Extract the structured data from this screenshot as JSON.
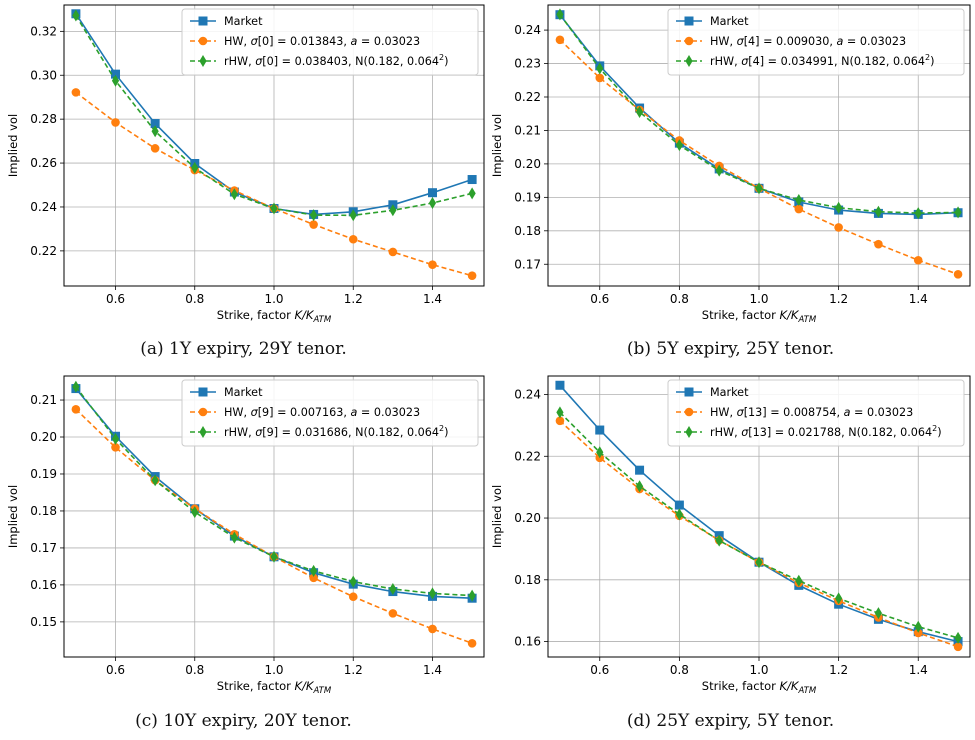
{
  "colors": {
    "market": "#1f77b4",
    "hw": "#ff7f0e",
    "rhw": "#2ca02c",
    "grid": "#b0b0b0"
  },
  "chart_data": [
    {
      "type": "line",
      "caption": "(a) 1Y expiry, 29Y tenor.",
      "xlabel": "Strike, factor K/K_ATM",
      "ylabel": "Implied vol",
      "xlim": [
        0.47,
        1.53
      ],
      "ylim": [
        0.204,
        0.332
      ],
      "xticks": [
        0.6,
        0.8,
        1.0,
        1.2,
        1.4
      ],
      "yticks": [
        0.22,
        0.24,
        0.26,
        0.28,
        0.3,
        0.32
      ],
      "grid": true,
      "legend": "top-right",
      "x": [
        0.5,
        0.6,
        0.7,
        0.8,
        0.9,
        1.0,
        1.1,
        1.2,
        1.3,
        1.4,
        1.5
      ],
      "series": [
        {
          "key": "market",
          "legend": {
            "text": "Market"
          },
          "values": [
            0.328,
            0.3005,
            0.278,
            0.2598,
            0.2468,
            0.2393,
            0.2366,
            0.2378,
            0.241,
            0.2465,
            0.2525
          ]
        },
        {
          "key": "hw",
          "legend": {
            "pre": "HW, ",
            "sym": "σ",
            "mid": "[0] = 0.013843, ",
            "sym2": "a",
            "post": " = 0.03023"
          },
          "values": [
            0.2922,
            0.2785,
            0.2667,
            0.2568,
            0.2475,
            0.2393,
            0.232,
            0.2253,
            0.2195,
            0.2137,
            0.2087
          ]
        },
        {
          "key": "rhw",
          "legend": {
            "pre": "rHW, ",
            "sym": "σ",
            "mid": "[0] = 0.038403, N(0.182, 0.064",
            "sup": "2",
            "post": ")"
          },
          "values": [
            0.3272,
            0.2975,
            0.2745,
            0.2578,
            0.2458,
            0.2393,
            0.2363,
            0.2362,
            0.2385,
            0.2418,
            0.2462
          ]
        }
      ]
    },
    {
      "type": "line",
      "caption": "(b) 5Y expiry, 25Y tenor.",
      "xlabel": "Strike, factor K/K_ATM",
      "ylabel": "Implied vol",
      "xlim": [
        0.47,
        1.53
      ],
      "ylim": [
        0.1635,
        0.2475
      ],
      "xticks": [
        0.6,
        0.8,
        1.0,
        1.2,
        1.4
      ],
      "yticks": [
        0.17,
        0.18,
        0.19,
        0.2,
        0.21,
        0.22,
        0.23,
        0.24
      ],
      "grid": true,
      "legend": "top-right",
      "x": [
        0.5,
        0.6,
        0.7,
        0.8,
        0.9,
        1.0,
        1.1,
        1.2,
        1.3,
        1.4,
        1.5
      ],
      "series": [
        {
          "key": "market",
          "legend": {
            "text": "Market"
          },
          "values": [
            0.2446,
            0.2293,
            0.2167,
            0.2062,
            0.1985,
            0.1927,
            0.1886,
            0.1862,
            0.1852,
            0.1849,
            0.1854
          ]
        },
        {
          "key": "hw",
          "legend": {
            "pre": "HW, ",
            "sym": "σ",
            "mid": "[4] = 0.009030, ",
            "sym2": "a",
            "post": " = 0.03023"
          },
          "values": [
            0.2371,
            0.2257,
            0.2161,
            0.207,
            0.1994,
            0.1927,
            0.1865,
            0.181,
            0.176,
            0.1712,
            0.167
          ]
        },
        {
          "key": "rhw",
          "legend": {
            "pre": "rHW, ",
            "sym": "σ",
            "mid": "[4] = 0.034991, N(0.182, 0.064",
            "sup": "2",
            "post": ")"
          },
          "values": [
            0.2447,
            0.2285,
            0.2155,
            0.2056,
            0.198,
            0.1927,
            0.1892,
            0.1869,
            0.1857,
            0.1853,
            0.1855
          ]
        }
      ]
    },
    {
      "type": "line",
      "caption": "(c) 10Y expiry, 20Y tenor.",
      "xlabel": "Strike, factor K/K_ATM",
      "ylabel": "Implied vol",
      "xlim": [
        0.47,
        1.53
      ],
      "ylim": [
        0.1405,
        0.2165
      ],
      "xticks": [
        0.6,
        0.8,
        1.0,
        1.2,
        1.4
      ],
      "yticks": [
        0.15,
        0.16,
        0.17,
        0.18,
        0.19,
        0.2,
        0.21
      ],
      "grid": true,
      "legend": "top-right",
      "x": [
        0.5,
        0.6,
        0.7,
        0.8,
        0.9,
        1.0,
        1.1,
        1.2,
        1.3,
        1.4,
        1.5
      ],
      "series": [
        {
          "key": "market",
          "legend": {
            "text": "Market"
          },
          "values": [
            0.2131,
            0.2002,
            0.1893,
            0.1806,
            0.1732,
            0.1676,
            0.1633,
            0.1602,
            0.1582,
            0.1569,
            0.1564
          ]
        },
        {
          "key": "hw",
          "legend": {
            "pre": "HW, ",
            "sym": "σ",
            "mid": "[9] = 0.007163, ",
            "sym2": "a",
            "post": " = 0.03023"
          },
          "values": [
            0.2075,
            0.1972,
            0.1883,
            0.1806,
            0.1737,
            0.1676,
            0.1619,
            0.1568,
            0.1523,
            0.1481,
            0.1442
          ]
        },
        {
          "key": "rhw",
          "legend": {
            "pre": "rHW, ",
            "sym": "σ",
            "mid": "[9] = 0.031686, N(0.182, 0.064",
            "sup": "2",
            "post": ")"
          },
          "values": [
            0.2136,
            0.1995,
            0.1883,
            0.1797,
            0.1728,
            0.1676,
            0.1638,
            0.1609,
            0.1589,
            0.1577,
            0.1571
          ]
        }
      ]
    },
    {
      "type": "line",
      "caption": "(d) 25Y expiry, 5Y tenor.",
      "xlabel": "Strike, factor K/K_ATM",
      "ylabel": "Implied vol",
      "xlim": [
        0.47,
        1.53
      ],
      "ylim": [
        0.155,
        0.246
      ],
      "xticks": [
        0.6,
        0.8,
        1.0,
        1.2,
        1.4
      ],
      "yticks": [
        0.16,
        0.18,
        0.2,
        0.22,
        0.24
      ],
      "grid": true,
      "legend": "top-right",
      "x": [
        0.5,
        0.6,
        0.7,
        0.8,
        0.9,
        1.0,
        1.1,
        1.2,
        1.3,
        1.4,
        1.5
      ],
      "series": [
        {
          "key": "market",
          "legend": {
            "text": "Market"
          },
          "values": [
            0.243,
            0.2285,
            0.2155,
            0.2042,
            0.1943,
            0.1857,
            0.1782,
            0.1721,
            0.1672,
            0.1632,
            0.16
          ]
        },
        {
          "key": "hw",
          "legend": {
            "pre": "HW, ",
            "sym": "σ",
            "mid": "[13] = 0.008754, ",
            "sym2": "a",
            "post": " = 0.03023"
          },
          "values": [
            0.2315,
            0.2195,
            0.2094,
            0.2007,
            0.1928,
            0.1857,
            0.179,
            0.1732,
            0.1678,
            0.1628,
            0.1583
          ]
        },
        {
          "key": "rhw",
          "legend": {
            "pre": "rHW, ",
            "sym": "σ",
            "mid": "[13] = 0.021788, N(0.182, 0.064",
            "sup": "2",
            "post": ")"
          },
          "values": [
            0.2342,
            0.2213,
            0.2103,
            0.2012,
            0.1927,
            0.1857,
            0.1797,
            0.174,
            0.1692,
            0.1648,
            0.1612
          ]
        }
      ]
    }
  ]
}
